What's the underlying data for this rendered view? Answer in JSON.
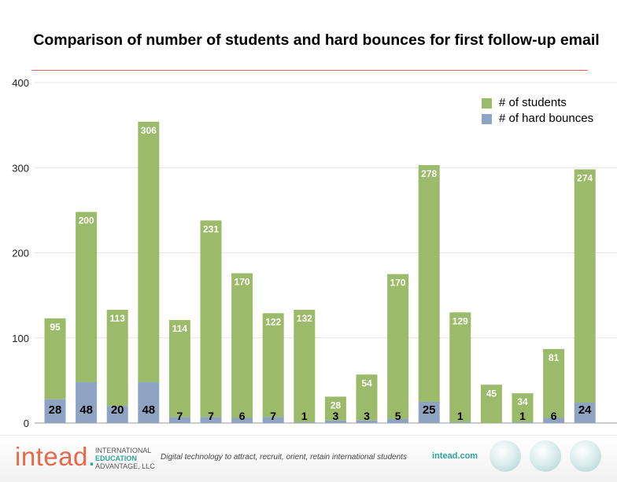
{
  "chart_data": {
    "type": "bar",
    "title": "Comparison of number of students and hard bounces for first follow-up email",
    "ylim": [
      0,
      400
    ],
    "yticks": [
      "0",
      "100",
      "200",
      "300",
      "400"
    ],
    "grid": true,
    "legend_position": "top-right",
    "series": [
      {
        "name": "# of students",
        "color": "#9bbb6a",
        "values": [
          95,
          200,
          113,
          306,
          114,
          231,
          170,
          122,
          132,
          28,
          54,
          170,
          278,
          129,
          45,
          34,
          81,
          274
        ]
      },
      {
        "name": "# of hard bounces",
        "color": "#8ea4c2",
        "values": [
          28,
          48,
          20,
          48,
          7,
          7,
          6,
          7,
          1,
          3,
          3,
          5,
          25,
          1,
          0,
          1,
          6,
          24
        ]
      }
    ],
    "bounce_labels": [
      "28",
      "48",
      "20",
      "48",
      "7",
      "7",
      "6",
      "7",
      "1",
      "3",
      "3",
      "5",
      "25",
      "1",
      "",
      "1",
      "6",
      "24"
    ]
  },
  "footer": {
    "logo_main": "intead",
    "logo_line1": "INTERNATIONAL",
    "logo_line2": "EDUCATION",
    "logo_line3": "ADVANTAGE, LLC",
    "tagline": "Digital technology to attract, recruit, orient, retain international students",
    "site": "intead.com"
  }
}
